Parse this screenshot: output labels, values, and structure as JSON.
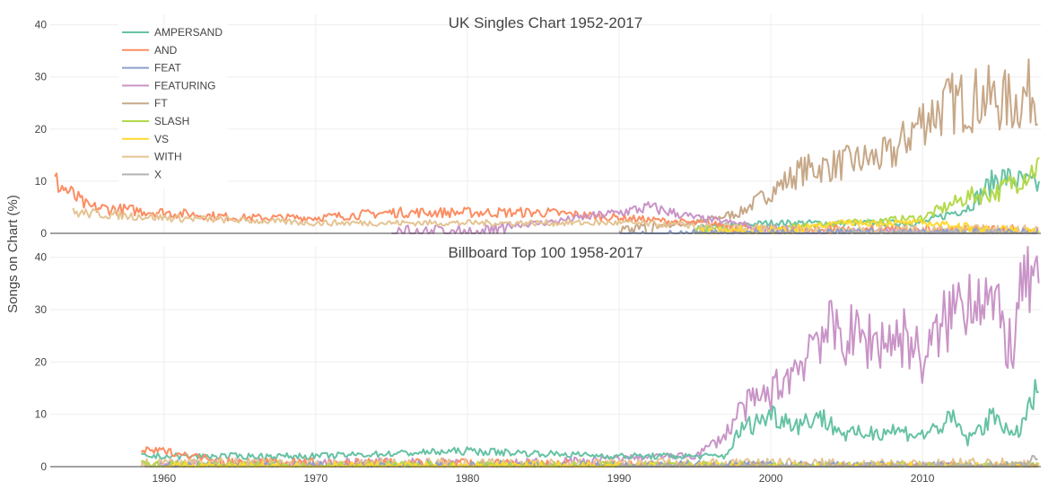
{
  "chart_data": {
    "type": "line",
    "ylabel": "Songs on Chart (%)",
    "xlim": [
      1952.5,
      2017.8
    ],
    "x_ticks": [
      1960,
      1970,
      1980,
      1990,
      2000,
      2010
    ],
    "legend": [
      "AMPERSAND",
      "AND",
      "FEAT",
      "FEATURING",
      "FT",
      "SLASH",
      "VS",
      "WITH",
      "X"
    ],
    "colors": {
      "AMPERSAND": "#66c2a5",
      "AND": "#fc8d62",
      "FEAT": "#8da0cb",
      "FEATURING": "#c994c7",
      "FT": "#c7a888",
      "SLASH": "#b3d94a",
      "VS": "#ffd92f",
      "WITH": "#e5c494",
      "X": "#b3b3b3"
    },
    "panels": [
      {
        "title": "UK Singles Chart 1952-2017",
        "ylim": [
          0,
          42
        ],
        "y_ticks": [
          0,
          10,
          20,
          30,
          40
        ],
        "series": [
          {
            "name": "FT",
            "x": [
              1990,
              1995,
              1998,
              2000,
              2002,
              2004,
              2006,
              2008,
              2010,
              2012,
              2014,
              2016,
              2017.7
            ],
            "y": [
              1,
              2,
              4,
              8,
              12,
              13,
              14,
              15,
              22,
              25,
              26,
              25,
              28
            ]
          },
          {
            "name": "AMPERSAND",
            "x": [
              1995,
              2000,
              2005,
              2010,
              2013,
              2015,
              2017.7
            ],
            "y": [
              1,
              2,
              2,
              2,
              5,
              11,
              9
            ]
          },
          {
            "name": "SLASH",
            "x": [
              1995,
              2000,
              2005,
              2010,
              2013,
              2015,
              2017.7
            ],
            "y": [
              1,
              1,
              2,
              3,
              7,
              8,
              13
            ]
          },
          {
            "name": "AND",
            "x": [
              1952.8,
              1955,
              1960,
              1965,
              1970,
              1975,
              1980,
              1985,
              1990,
              1995,
              2000,
              2005,
              2010,
              2017.7
            ],
            "y": [
              10,
              5,
              4,
              3,
              3,
              4,
              4,
              4,
              3,
              2,
              1,
              1,
              1,
              1
            ]
          },
          {
            "name": "FEATURING",
            "x": [
              1975,
              1980,
              1985,
              1990,
              1992,
              1995,
              2000,
              2005,
              2010,
              2017.7
            ],
            "y": [
              1,
              1,
              2,
              4,
              5,
              3,
              1,
              0.5,
              0.3,
              0.2
            ]
          },
          {
            "name": "WITH",
            "x": [
              1954,
              1960,
              1970,
              1980,
              1990,
              2000,
              2010,
              2017.7
            ],
            "y": [
              4,
              3,
              2,
              2,
              2,
              1,
              1,
              1
            ]
          },
          {
            "name": "VS",
            "x": [
              1995,
              2000,
              2005,
              2010,
              2015,
              2017.7
            ],
            "y": [
              0.5,
              1,
              2,
              2,
              1,
              0.5
            ]
          },
          {
            "name": "FEAT",
            "x": [
              1990,
              2000,
              2010,
              2017.7
            ],
            "y": [
              0,
              0.3,
              0.3,
              0.3
            ]
          },
          {
            "name": "X",
            "x": [
              2005,
              2017.7
            ],
            "y": [
              0,
              0.2
            ]
          }
        ]
      },
      {
        "title": "Billboard Top 100 1958-2017",
        "ylim": [
          0,
          42
        ],
        "y_ticks": [
          0,
          10,
          20,
          30,
          40
        ],
        "series": [
          {
            "name": "FEATURING",
            "x": [
              1958.5,
              1965,
              1975,
              1985,
              1993,
              1995,
              1997,
              1998,
              2000,
              2002,
              2003,
              2005,
              2007,
              2009,
              2010,
              2012,
              2013,
              2014,
              2015,
              2016,
              2016.8,
              2017.7
            ],
            "y": [
              0.5,
              1,
              1,
              1,
              2,
              2,
              6,
              11,
              14,
              20,
              26,
              25,
              24,
              25,
              20,
              30,
              33,
              34,
              28,
              22,
              38,
              32
            ]
          },
          {
            "name": "AMPERSAND",
            "x": [
              1958.5,
              1965,
              1970,
              1980,
              1990,
              1995,
              1997,
              1998,
              2000,
              2002,
              2003,
              2005,
              2008,
              2010,
              2012,
              2013,
              2014,
              2015,
              2016,
              2017.7
            ],
            "y": [
              2,
              2,
              2,
              3,
              2,
              2,
              2,
              7,
              10,
              8,
              10,
              6,
              7,
              6,
              9,
              5,
              8,
              10,
              5,
              15
            ]
          },
          {
            "name": "AND",
            "x": [
              1958.5,
              1960,
              1962,
              1965,
              1970,
              1980,
              1990,
              2000,
              2010,
              2017.7
            ],
            "y": [
              3,
              3,
              2,
              1,
              1,
              1,
              0.5,
              0.3,
              0.3,
              0.3
            ]
          },
          {
            "name": "WITH",
            "x": [
              1958.5,
              1970,
              1980,
              1990,
              2000,
              2005,
              2010,
              2017.7
            ],
            "y": [
              1,
              1,
              1,
              1,
              1,
              1,
              1,
              1
            ]
          },
          {
            "name": "FEAT",
            "x": [
              1960,
              1980,
              2000,
              2017.7
            ],
            "y": [
              0.3,
              0.5,
              0.5,
              0.3
            ]
          },
          {
            "name": "SLASH",
            "x": [
              1958.5,
              1980,
              2000,
              2017.7
            ],
            "y": [
              0.5,
              0.5,
              0.3,
              0.2
            ]
          },
          {
            "name": "VS",
            "x": [
              1960,
              1980,
              2000,
              2017.7
            ],
            "y": [
              0.3,
              0.3,
              0.3,
              0.3
            ]
          },
          {
            "name": "FT",
            "x": [
              1990,
              2000,
              2010,
              2017.7
            ],
            "y": [
              0,
              0.2,
              0.2,
              0.2
            ]
          },
          {
            "name": "X",
            "x": [
              1990,
              2010,
              2016,
              2017.7
            ],
            "y": [
              0,
              0.3,
              0.5,
              2
            ]
          }
        ]
      }
    ]
  }
}
